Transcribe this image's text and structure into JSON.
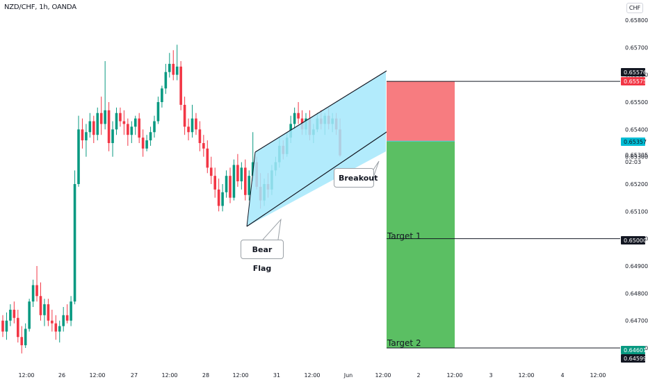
{
  "header": {
    "symbol": "NZD/CHF, 1h, OANDA",
    "currency": "CHF"
  },
  "chart_data": {
    "type": "candlestick",
    "instrument": "NZD/CHF",
    "timeframe": "1h",
    "broker": "OANDA",
    "y_axis": {
      "ticks": [
        "0.65800",
        "0.65700",
        "0.65600",
        "0.65500",
        "0.65400",
        "0.65300",
        "0.65200",
        "0.65100",
        "0.65000",
        "0.64900",
        "0.64800",
        "0.64700",
        "0.64600"
      ],
      "ylim": [
        0.64578,
        0.65868
      ]
    },
    "x_axis": {
      "ticks": [
        "12:00",
        "26",
        "12:00",
        "27",
        "12:00",
        "28",
        "12:00",
        "31",
        "12:00",
        "Jun",
        "12:00",
        "2",
        "12:00",
        "3",
        "12:00",
        "4",
        "12:00"
      ]
    },
    "price_labels": [
      {
        "value": "0.65576",
        "color": "#131722"
      },
      {
        "value": "0.65575",
        "color": "#f23645"
      },
      {
        "value": "0.65357",
        "color": "#00bcd4"
      },
      {
        "value": "0.65305",
        "color": "#ffffff",
        "sub": "02:03"
      },
      {
        "value": "0.65000",
        "color": "#131722"
      },
      {
        "value": "0.64601",
        "color": "#089981"
      },
      {
        "value": "0.64599",
        "color": "#131722"
      }
    ],
    "candles_ohlc": [
      [
        0.647,
        0.6472,
        0.6464,
        0.6466
      ],
      [
        0.6466,
        0.6473,
        0.6463,
        0.647
      ],
      [
        0.647,
        0.6476,
        0.6468,
        0.6474
      ],
      [
        0.6474,
        0.6477,
        0.6469,
        0.6471
      ],
      [
        0.6471,
        0.6474,
        0.6462,
        0.6464
      ],
      [
        0.6464,
        0.6468,
        0.6458,
        0.6461
      ],
      [
        0.6461,
        0.6469,
        0.646,
        0.6467
      ],
      [
        0.6467,
        0.6478,
        0.6466,
        0.6477
      ],
      [
        0.6477,
        0.6485,
        0.6475,
        0.6483
      ],
      [
        0.6483,
        0.649,
        0.6477,
        0.6479
      ],
      [
        0.6479,
        0.6484,
        0.647,
        0.6472
      ],
      [
        0.6472,
        0.6478,
        0.6468,
        0.6476
      ],
      [
        0.6476,
        0.6478,
        0.6468,
        0.647
      ],
      [
        0.647,
        0.6474,
        0.6466,
        0.6469
      ],
      [
        0.6469,
        0.6472,
        0.6463,
        0.6466
      ],
      [
        0.6466,
        0.647,
        0.6462,
        0.6468
      ],
      [
        0.6468,
        0.6475,
        0.6466,
        0.6472
      ],
      [
        0.6472,
        0.6476,
        0.6469,
        0.647
      ],
      [
        0.647,
        0.6479,
        0.6468,
        0.6477
      ],
      [
        0.6477,
        0.6525,
        0.6476,
        0.652
      ],
      [
        0.652,
        0.6545,
        0.6519,
        0.654
      ],
      [
        0.654,
        0.6544,
        0.6533,
        0.6536
      ],
      [
        0.6536,
        0.6542,
        0.653,
        0.6539
      ],
      [
        0.6539,
        0.6546,
        0.6537,
        0.6543
      ],
      [
        0.6543,
        0.6545,
        0.6535,
        0.6538
      ],
      [
        0.6538,
        0.6548,
        0.6536,
        0.6546
      ],
      [
        0.6546,
        0.6552,
        0.6538,
        0.6542
      ],
      [
        0.6542,
        0.6565,
        0.654,
        0.6547
      ],
      [
        0.6547,
        0.655,
        0.6532,
        0.6535
      ],
      [
        0.6535,
        0.6543,
        0.653,
        0.654
      ],
      [
        0.654,
        0.6548,
        0.6538,
        0.6546
      ],
      [
        0.6546,
        0.6548,
        0.6541,
        0.6543
      ],
      [
        0.6543,
        0.6547,
        0.6538,
        0.6542
      ],
      [
        0.6542,
        0.6544,
        0.6534,
        0.6538
      ],
      [
        0.6538,
        0.6543,
        0.6535,
        0.6541
      ],
      [
        0.6541,
        0.6545,
        0.6538,
        0.6544
      ],
      [
        0.6544,
        0.6546,
        0.6535,
        0.6537
      ],
      [
        0.6537,
        0.654,
        0.653,
        0.6533
      ],
      [
        0.6533,
        0.6538,
        0.6532,
        0.6536
      ],
      [
        0.6536,
        0.6541,
        0.6534,
        0.6539
      ],
      [
        0.6539,
        0.6545,
        0.6537,
        0.6543
      ],
      [
        0.6543,
        0.6552,
        0.6542,
        0.655
      ],
      [
        0.655,
        0.6556,
        0.6548,
        0.6555
      ],
      [
        0.6555,
        0.6564,
        0.6553,
        0.6561
      ],
      [
        0.6561,
        0.6568,
        0.6559,
        0.6564
      ],
      [
        0.6564,
        0.6569,
        0.6558,
        0.656
      ],
      [
        0.656,
        0.6571,
        0.6558,
        0.6563
      ],
      [
        0.6563,
        0.6565,
        0.6547,
        0.6549
      ],
      [
        0.6549,
        0.6552,
        0.6538,
        0.6541
      ],
      [
        0.6541,
        0.6544,
        0.6536,
        0.6539
      ],
      [
        0.6539,
        0.6549,
        0.6537,
        0.6544
      ],
      [
        0.6544,
        0.6546,
        0.6538,
        0.654
      ],
      [
        0.654,
        0.6543,
        0.6532,
        0.6535
      ],
      [
        0.6535,
        0.6538,
        0.653,
        0.6533
      ],
      [
        0.6533,
        0.6536,
        0.6524,
        0.6526
      ],
      [
        0.6526,
        0.653,
        0.652,
        0.6523
      ],
      [
        0.6523,
        0.6526,
        0.6515,
        0.6518
      ],
      [
        0.6518,
        0.6522,
        0.651,
        0.6512
      ],
      [
        0.6512,
        0.652,
        0.651,
        0.6517
      ],
      [
        0.6517,
        0.6525,
        0.6515,
        0.6523
      ],
      [
        0.6523,
        0.6526,
        0.6513,
        0.6515
      ],
      [
        0.6515,
        0.6529,
        0.6514,
        0.6527
      ],
      [
        0.6527,
        0.6531,
        0.6519,
        0.6521
      ],
      [
        0.6521,
        0.6528,
        0.6518,
        0.6526
      ],
      [
        0.6526,
        0.6529,
        0.6514,
        0.6516
      ],
      [
        0.6516,
        0.6525,
        0.6514,
        0.6523
      ],
      [
        0.6523,
        0.6539,
        0.6521,
        0.6528
      ],
      [
        0.6528,
        0.653,
        0.6518,
        0.6519
      ],
      [
        0.6519,
        0.6524,
        0.6511,
        0.6514
      ],
      [
        0.6514,
        0.6522,
        0.6512,
        0.652
      ],
      [
        0.652,
        0.6524,
        0.6515,
        0.6518
      ],
      [
        0.6518,
        0.6527,
        0.6516,
        0.6525
      ],
      [
        0.6525,
        0.653,
        0.6523,
        0.6528
      ],
      [
        0.6528,
        0.6537,
        0.6526,
        0.6534
      ],
      [
        0.6534,
        0.6536,
        0.6529,
        0.6531
      ],
      [
        0.6531,
        0.6539,
        0.653,
        0.6537
      ],
      [
        0.6537,
        0.6545,
        0.6535,
        0.6542
      ],
      [
        0.6542,
        0.6548,
        0.654,
        0.6546
      ],
      [
        0.6546,
        0.655,
        0.6542,
        0.6544
      ],
      [
        0.6544,
        0.6547,
        0.6538,
        0.654
      ],
      [
        0.654,
        0.6546,
        0.6538,
        0.6544
      ],
      [
        0.6544,
        0.6547,
        0.6536,
        0.6538
      ],
      [
        0.6538,
        0.6542,
        0.6535,
        0.654
      ],
      [
        0.654,
        0.6546,
        0.6539,
        0.6544
      ],
      [
        0.6544,
        0.6547,
        0.654,
        0.6542
      ],
      [
        0.6542,
        0.6546,
        0.6538,
        0.6545
      ],
      [
        0.6545,
        0.6548,
        0.654,
        0.6542
      ],
      [
        0.6542,
        0.6546,
        0.6539,
        0.6544
      ],
      [
        0.6544,
        0.6546,
        0.6538,
        0.654
      ],
      [
        0.654,
        0.6544,
        0.653,
        0.65305
      ]
    ],
    "annotations": [
      {
        "text": "Bear Flag"
      },
      {
        "text": "Breakout"
      },
      {
        "text": "Target 1"
      },
      {
        "text": "Target 2"
      }
    ],
    "colors": {
      "bull": "#089981",
      "bear": "#f23645",
      "channel_fill": "#a5e8fb",
      "stop_zone": "#f77c80",
      "target_zone": "#5bbf63"
    }
  }
}
